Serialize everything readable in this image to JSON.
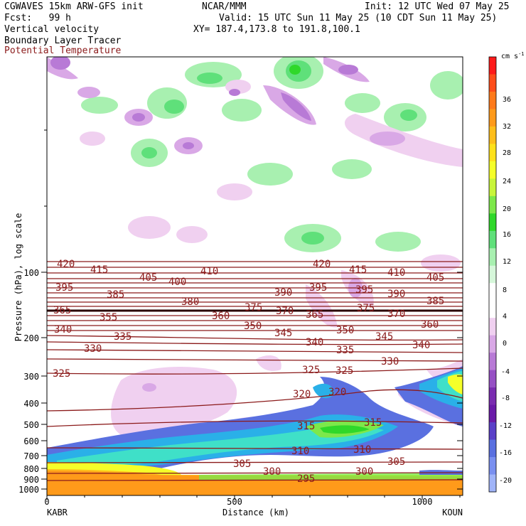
{
  "header": {
    "model": "CGWAVES 15km ARW-GFS init",
    "forecast": "Fcst:   99 h",
    "org": "NCAR/MMM",
    "init": "Init: 12 UTC Wed 07 May 25",
    "valid": "Valid: 15 UTC Sun 11 May 25 (10 CDT Sun 11 May 25)",
    "xy": "XY= 187.4,173.8 to 191.8,100.1",
    "field1": "Vertical velocity",
    "field2": "Boundary Layer Tracer",
    "field3": "Potential Temperature"
  },
  "chart_data": {
    "type": "contour",
    "title": "Vertical velocity / Boundary Layer Tracer / Potential Temperature",
    "xlabel": "Distance (km)",
    "ylabel": "Pressure (hPa), log scale",
    "xlim": [
      0,
      1110
    ],
    "x_ticks": [
      "0",
      "500",
      "1000"
    ],
    "x_endpoints": [
      "KABR",
      "KOUN"
    ],
    "y_scale": "log",
    "y_ticks": [
      "100",
      "200",
      "300",
      "400",
      "500",
      "600",
      "700",
      "800",
      "900",
      "1000"
    ],
    "colorbar": {
      "unit": "cm s",
      "unit_exp": "-1",
      "ticks": [
        "36",
        "32",
        "28",
        "24",
        "20",
        "16",
        "12",
        "8",
        "4",
        "0",
        "-4",
        "-8",
        "-12",
        "-16",
        "-20"
      ],
      "colors": [
        "#ff1a1a",
        "#ff4d1a",
        "#ff7a1a",
        "#ff9a1a",
        "#ffbe1a",
        "#ffe11a",
        "#f5ff29",
        "#c8f53a",
        "#7de84a",
        "#2fd82a",
        "#5fe07a",
        "#a8f0b0",
        "#d6f7da",
        "#ffffff",
        "#ffffff",
        "#f0d0f0",
        "#d9a8e6",
        "#b87ad6",
        "#9650c4",
        "#7a2cb0",
        "#6a1aa8",
        "#5a40c8",
        "#5a70e0",
        "#7a90f0",
        "#a0b4f8"
      ]
    },
    "theta_contours": [
      {
        "value": 420,
        "labels": [
          "420",
          "420"
        ]
      },
      {
        "value": 415,
        "labels": [
          "415",
          "415"
        ]
      },
      {
        "value": 410,
        "labels": [
          "410",
          "410"
        ]
      },
      {
        "value": 405,
        "labels": [
          "405",
          "405"
        ]
      },
      {
        "value": 400,
        "labels": [
          "400"
        ]
      },
      {
        "value": 395,
        "labels": [
          "395",
          "395",
          "395"
        ]
      },
      {
        "value": 390,
        "labels": [
          "390",
          "390"
        ]
      },
      {
        "value": 385,
        "labels": [
          "385",
          "385"
        ]
      },
      {
        "value": 380,
        "labels": [
          "380"
        ]
      },
      {
        "value": 375,
        "labels": [
          "375",
          "375"
        ]
      },
      {
        "value": 370,
        "labels": [
          "370",
          "370"
        ]
      },
      {
        "value": 365,
        "labels": [
          "365",
          "365"
        ]
      },
      {
        "value": 360,
        "labels": [
          "360",
          "360"
        ]
      },
      {
        "value": 355,
        "labels": [
          "355"
        ]
      },
      {
        "value": 350,
        "labels": [
          "350",
          "350"
        ]
      },
      {
        "value": 345,
        "labels": [
          "345",
          "345"
        ]
      },
      {
        "value": 340,
        "labels": [
          "340",
          "340",
          "340"
        ]
      },
      {
        "value": 335,
        "labels": [
          "335",
          "335"
        ]
      },
      {
        "value": 330,
        "labels": [
          "330",
          "330"
        ]
      },
      {
        "value": 325,
        "labels": [
          "325",
          "325",
          "325"
        ]
      },
      {
        "value": 320,
        "labels": [
          "320",
          "320"
        ]
      },
      {
        "value": 315,
        "labels": [
          "315",
          "315"
        ]
      },
      {
        "value": 310,
        "labels": [
          "310",
          "310"
        ]
      },
      {
        "value": 305,
        "labels": [
          "305",
          "305"
        ]
      },
      {
        "value": 300,
        "labels": [
          "300",
          "300"
        ]
      },
      {
        "value": 295,
        "labels": [
          "295"
        ]
      }
    ]
  }
}
